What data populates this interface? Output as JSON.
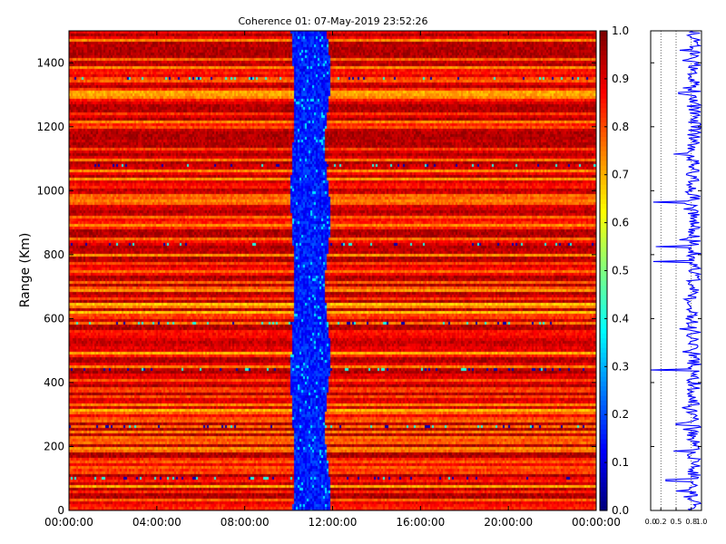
{
  "chart_data": [
    {
      "type": "heatmap",
      "title": "Coherence 01: 07-May-2019 23:52:26",
      "xlabel": "",
      "ylabel": "Range (Km)",
      "x_ticks": [
        "00:00:00",
        "04:00:00",
        "08:00:00",
        "12:00:00",
        "16:00:00",
        "20:00:00",
        "00:00:00"
      ],
      "x_range_hours": [
        0,
        24
      ],
      "y_ticks": [
        0,
        200,
        400,
        600,
        800,
        1000,
        1200,
        1400
      ],
      "ylim": [
        0,
        1500
      ],
      "value_range": [
        0,
        1
      ],
      "colormap": "jet",
      "colorbar_ticks": [
        "0.0",
        "0.1",
        "0.2",
        "0.3",
        "0.4",
        "0.5",
        "0.6",
        "0.7",
        "0.8",
        "0.9",
        "1.0"
      ],
      "low_coherence_window_hours": [
        10.2,
        11.8
      ],
      "low_coherence_value": 0.15,
      "background_value": 0.85,
      "dropout_ranges_km": [
        20,
        100,
        265,
        440,
        585,
        835,
        1080,
        1350
      ],
      "grid": false
    },
    {
      "type": "line",
      "xlim": [
        0,
        1
      ],
      "x_ticks": [
        "0.0",
        "0.2",
        "0.5",
        "0.8",
        "1.0"
      ],
      "ylim": [
        0,
        1500
      ],
      "y_tick_values": [
        0,
        200,
        400,
        600,
        800,
        1000,
        1200,
        1400
      ],
      "grid_x": [
        0.2,
        0.5,
        0.8
      ],
      "series_color": "#0000ff",
      "mean_value": 0.85,
      "spikes": [
        {
          "range_km": 440,
          "value": 0.0
        },
        {
          "range_km": 780,
          "value": 0.05
        },
        {
          "range_km": 825,
          "value": 0.1
        },
        {
          "range_km": 965,
          "value": 0.05
        },
        {
          "range_km": 1305,
          "value": 0.55
        },
        {
          "range_km": 1115,
          "value": 0.45
        },
        {
          "range_km": 95,
          "value": 0.3
        },
        {
          "range_km": 185,
          "value": 0.45
        },
        {
          "range_km": 270,
          "value": 0.5
        },
        {
          "range_km": 60,
          "value": 0.5
        }
      ]
    }
  ]
}
